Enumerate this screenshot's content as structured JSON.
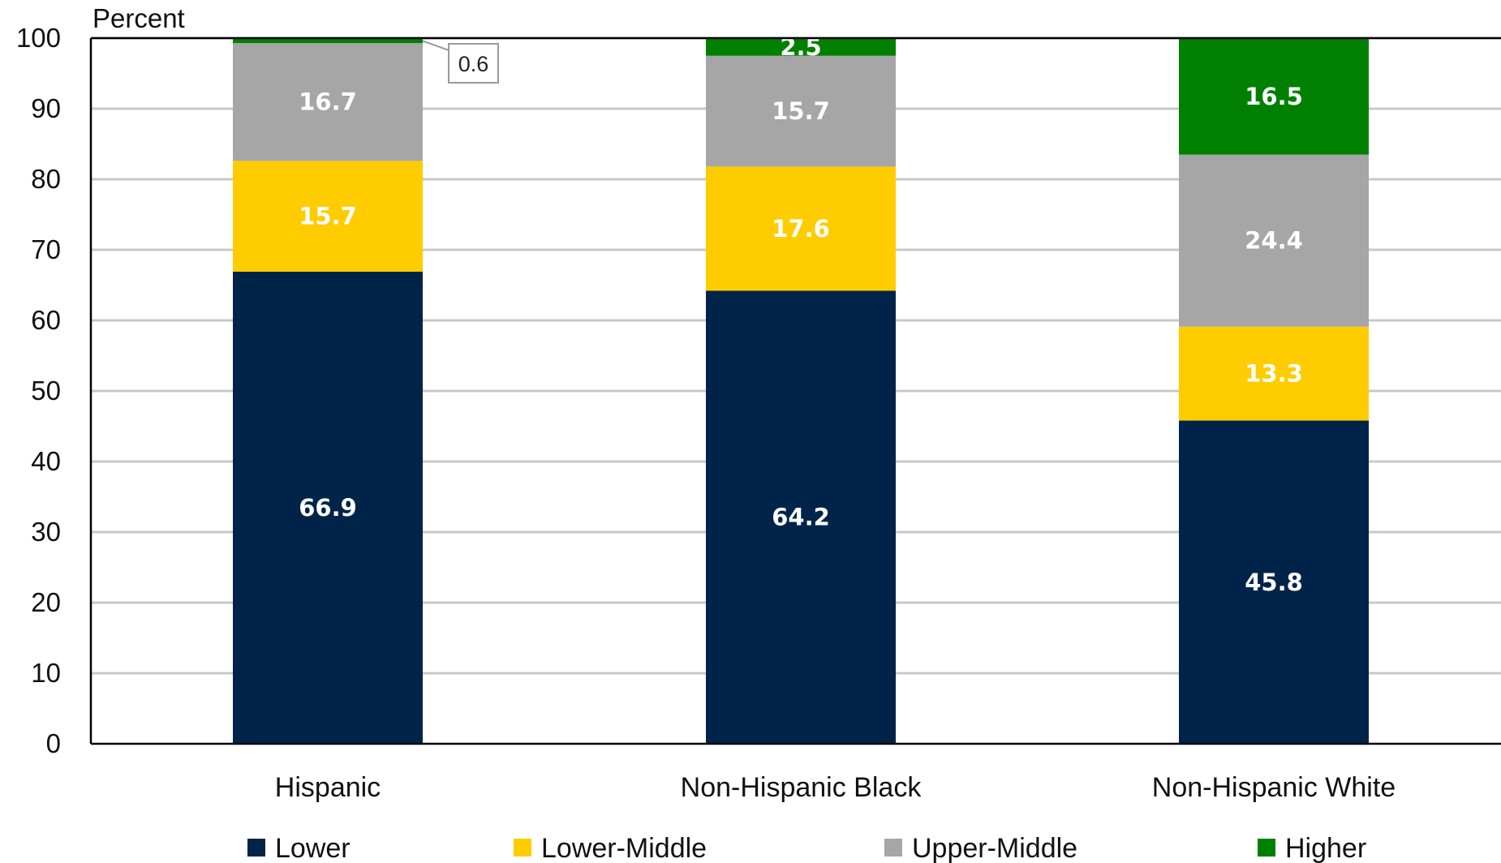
{
  "chart_data": {
    "type": "bar",
    "stacked": true,
    "ylabel": "Percent",
    "xlabel": "",
    "ylim": [
      0,
      100
    ],
    "ytick_step": 10,
    "grid": true,
    "legend_position": "bottom",
    "categories": [
      "Hispanic",
      "Non-Hispanic Black",
      "Non-Hispanic White"
    ],
    "series": [
      {
        "name": "Lower",
        "color": "#002449",
        "values": [
          66.9,
          64.2,
          45.8
        ]
      },
      {
        "name": "Lower-Middle",
        "color": "#FFCC00",
        "values": [
          15.7,
          17.6,
          13.3
        ]
      },
      {
        "name": "Upper-Middle",
        "color": "#A6A6A6",
        "values": [
          16.7,
          15.7,
          24.4
        ]
      },
      {
        "name": "Higher",
        "color": "#008000",
        "values": [
          0.6,
          2.5,
          16.5
        ]
      }
    ],
    "callouts": [
      {
        "category": "Hispanic",
        "series": "Higher",
        "text": "0.6"
      }
    ]
  }
}
